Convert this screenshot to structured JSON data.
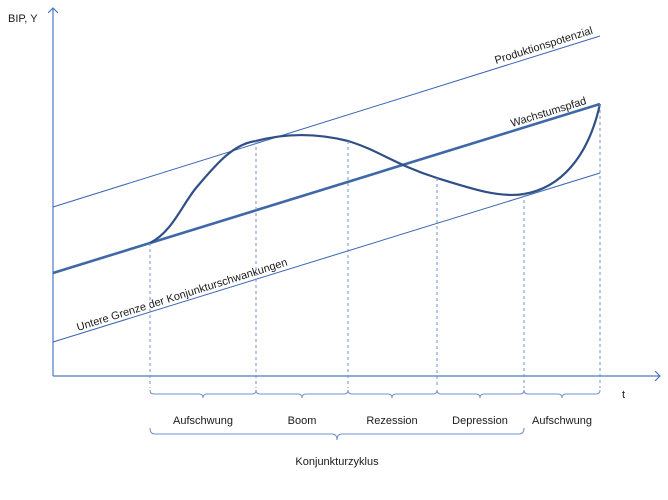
{
  "chart_data": {
    "type": "line",
    "title": "",
    "ylabel": "BIP, Y",
    "xlabel": "t",
    "lines": {
      "potential": "Produktionspotenzial",
      "trend": "Wachstumspfad",
      "lower": "Untere Grenze der Konjunkturschwankungen"
    },
    "phases": [
      {
        "name": "Aufschwung"
      },
      {
        "name": "Boom"
      },
      {
        "name": "Rezession"
      },
      {
        "name": "Depression"
      },
      {
        "name": "Aufschwung"
      }
    ],
    "cycle_label": "Konjunkturzyklus"
  },
  "colors": {
    "axis": "#4a7bbf",
    "trend": "#3f68a8",
    "thin": "#3a64b0",
    "curve": "#2f4f86",
    "dashed": "#6f93cc"
  }
}
